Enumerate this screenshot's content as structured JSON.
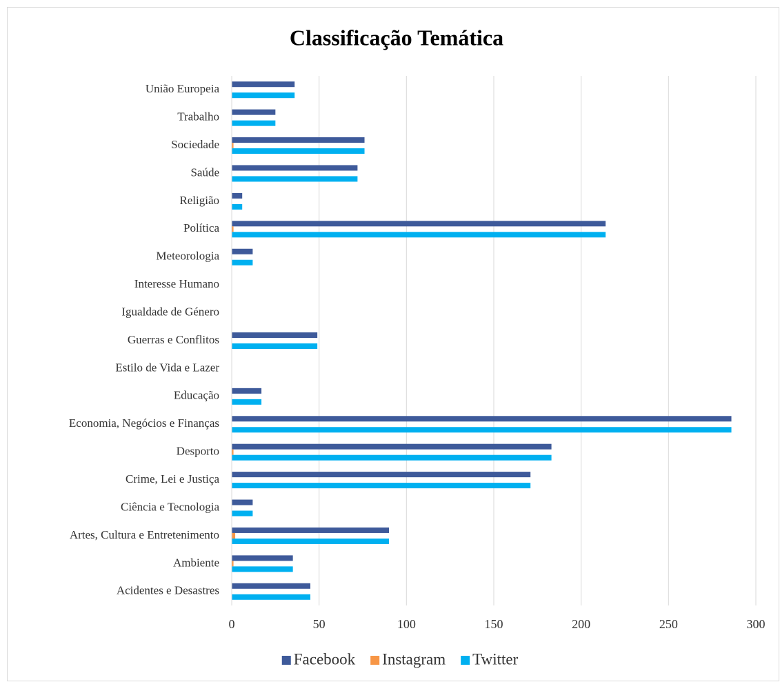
{
  "chart_data": {
    "type": "hbar",
    "title": "Classificação Temática",
    "categories": [
      "Acidentes e Desastres",
      "Ambiente",
      "Artes, Cultura e Entretenimento",
      "Ciência e Tecnologia",
      "Crime, Lei e Justiça",
      "Desporto",
      "Economia, Negócios e Finanças",
      "Educação",
      "Estilo de Vida e Lazer",
      "Guerras e Conflitos",
      "Igualdade de Género",
      "Interesse Humano",
      "Meteorologia",
      "Política",
      "Religião",
      "Saúde",
      "Sociedade",
      "Trabalho",
      "União Europeia"
    ],
    "series": [
      {
        "name": "Facebook",
        "color": "#3e5a9a",
        "values": [
          45,
          35,
          90,
          12,
          171,
          183,
          286,
          17,
          0,
          49,
          0,
          0,
          12,
          214,
          6,
          72,
          76,
          25,
          36
        ]
      },
      {
        "name": "Instagram",
        "color": "#f79646",
        "values": [
          0,
          1,
          2,
          0,
          0,
          1,
          0,
          0,
          0,
          0,
          0,
          0,
          0,
          1,
          0,
          0,
          1,
          0,
          0
        ]
      },
      {
        "name": "Twitter",
        "color": "#00b0f0",
        "values": [
          45,
          35,
          90,
          12,
          171,
          183,
          286,
          17,
          0,
          49,
          0,
          0,
          12,
          214,
          6,
          72,
          76,
          25,
          36
        ]
      }
    ],
    "xlim": [
      0,
      300
    ],
    "xticks": [
      0,
      50,
      100,
      150,
      200,
      250,
      300
    ],
    "grid": true,
    "legend": "bottom"
  }
}
